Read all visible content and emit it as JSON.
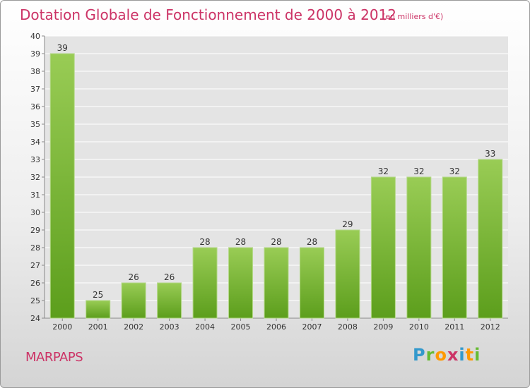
{
  "title": "Dotation Globale de Fonctionnement de 2000 à 2012",
  "unit_note": "(en milliers d'€)",
  "commune": "MARPAPS",
  "logo": {
    "letters": [
      "P",
      "r",
      "o",
      "x",
      "i",
      "t",
      "i"
    ],
    "colors": [
      "#3399cc",
      "#66bb33",
      "#ff9900",
      "#cc3366",
      "#3399cc",
      "#ff9900",
      "#66bb33"
    ]
  },
  "colors": {
    "bar_light": "#99cc55",
    "bar_dark": "#5c9e1c",
    "title": "#cc3366"
  },
  "chart_data": {
    "type": "bar",
    "categories": [
      "2000",
      "2001",
      "2002",
      "2003",
      "2004",
      "2005",
      "2006",
      "2007",
      "2008",
      "2009",
      "2010",
      "2011",
      "2012"
    ],
    "values": [
      39,
      25,
      26,
      26,
      28,
      28,
      28,
      28,
      29,
      32,
      32,
      32,
      33
    ],
    "title": "Dotation Globale de Fonctionnement de 2000 à 2012",
    "ylim": [
      24,
      40
    ],
    "yticks": [
      24,
      25,
      26,
      27,
      28,
      29,
      30,
      31,
      32,
      33,
      34,
      35,
      36,
      37,
      38,
      39,
      40
    ],
    "grid": true,
    "data_labels": true
  }
}
